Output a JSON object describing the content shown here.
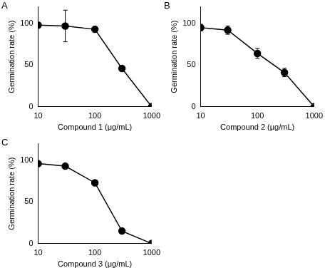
{
  "chart_data": [
    {
      "type": "line",
      "title": "A",
      "x_label": "Compound 1 (μg/mL)",
      "y_label": "Germination rate (%)",
      "log": "x",
      "grid": false,
      "marker": "circle",
      "color": "#000000",
      "xlim": [
        10,
        1000
      ],
      "xticks": [
        10,
        100,
        1000
      ],
      "ylim": [
        0,
        120
      ],
      "yticks": [
        0,
        50,
        100
      ],
      "x": [
        10,
        30,
        100,
        300,
        1000
      ],
      "values": [
        98,
        97,
        93,
        46,
        0
      ],
      "errors": [
        1,
        19,
        2,
        1,
        0
      ]
    },
    {
      "type": "line",
      "title": "B",
      "x_label": "Compound 2 (μg/mL)",
      "y_label": "Germination rate (%)",
      "log": "x",
      "grid": false,
      "marker": "circle",
      "color": "#000000",
      "xlim": [
        10,
        1000
      ],
      "xticks": [
        10,
        100,
        1000
      ],
      "ylim": [
        0,
        120
      ],
      "yticks": [
        0,
        50,
        100
      ],
      "x": [
        10,
        30,
        100,
        300,
        1000
      ],
      "values": [
        95,
        92,
        64,
        41,
        0
      ],
      "errors": [
        4,
        5,
        6,
        5,
        0
      ]
    },
    {
      "type": "line",
      "title": "C",
      "x_label": "Compound 3 (μg/mL)",
      "y_label": "Germination rate (%)",
      "log": "x",
      "grid": false,
      "marker": "circle",
      "color": "#000000",
      "xlim": [
        10,
        1000
      ],
      "xticks": [
        10,
        100,
        1000
      ],
      "ylim": [
        0,
        120
      ],
      "yticks": [
        0,
        50,
        100
      ],
      "x": [
        10,
        30,
        100,
        300,
        1000
      ],
      "values": [
        96,
        93,
        73,
        15,
        0
      ],
      "errors": [
        2,
        2,
        2,
        2,
        0
      ]
    }
  ]
}
